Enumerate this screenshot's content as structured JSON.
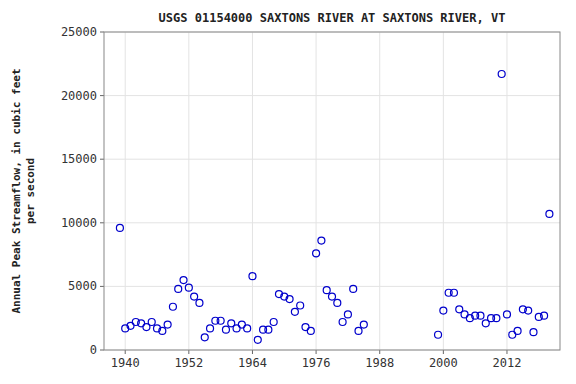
{
  "chart_data": {
    "type": "scatter",
    "title": "USGS 01154000 SAXTONS RIVER AT SAXTONS RIVER, VT",
    "ylabel": "Annual Peak Streamflow, in cubic feet\nper second",
    "x": [
      1939,
      1940,
      1941,
      1942,
      1943,
      1944,
      1945,
      1946,
      1947,
      1948,
      1949,
      1950,
      1951,
      1952,
      1953,
      1954,
      1955,
      1956,
      1957,
      1958,
      1959,
      1960,
      1961,
      1962,
      1963,
      1964,
      1965,
      1966,
      1967,
      1968,
      1969,
      1970,
      1971,
      1972,
      1973,
      1974,
      1975,
      1976,
      1977,
      1978,
      1979,
      1980,
      1981,
      1982,
      1983,
      1984,
      1985,
      1999,
      2000,
      2001,
      2002,
      2003,
      2004,
      2005,
      2006,
      2007,
      2008,
      2009,
      2010,
      2011,
      2012,
      2013,
      2014,
      2015,
      2016,
      2017,
      2018,
      2019,
      2020
    ],
    "values": [
      9600,
      1700,
      1900,
      2200,
      2100,
      1800,
      2200,
      1700,
      1500,
      2000,
      3400,
      4800,
      5500,
      4900,
      4200,
      3700,
      1000,
      1700,
      2300,
      2300,
      1600,
      2100,
      1700,
      2000,
      1700,
      5800,
      800,
      1600,
      1600,
      2200,
      4400,
      4200,
      4000,
      3000,
      3500,
      1800,
      1500,
      7600,
      8600,
      4700,
      4200,
      3700,
      2200,
      2800,
      4800,
      1500,
      2000,
      1200,
      3100,
      4500,
      4500,
      3200,
      2800,
      2500,
      2700,
      2700,
      2100,
      2500,
      2500,
      21700,
      2800,
      1200,
      1500,
      3200,
      3100,
      1400,
      2600,
      2700,
      10700
    ],
    "color": "#0000cc",
    "marker": "circle",
    "xlim": [
      1936,
      2022
    ],
    "ylim": [
      0,
      25000
    ],
    "xticks": [
      1940,
      1952,
      1964,
      1976,
      1988,
      2000,
      2012
    ],
    "yticks": [
      0,
      5000,
      10000,
      15000,
      20000,
      25000
    ],
    "grid": true
  }
}
